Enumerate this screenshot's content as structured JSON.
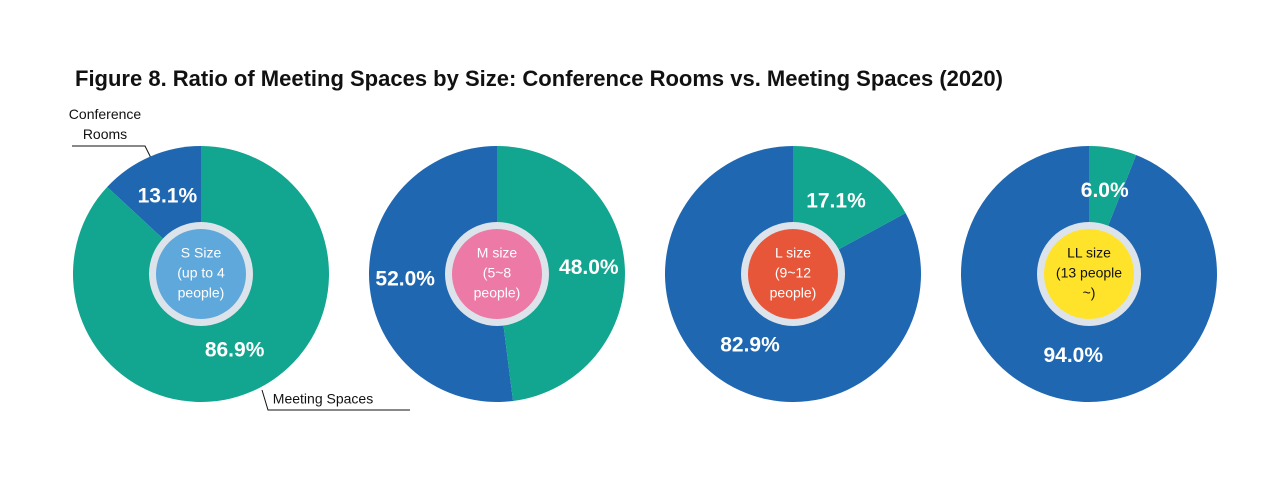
{
  "title": "Figure 8. Ratio of Meeting Spaces by Size: Conference Rooms vs. Meeting Spaces (2020)",
  "chart_data": [
    {
      "type": "pie",
      "categories": [
        "Conference Rooms",
        "Meeting Spaces"
      ],
      "values": [
        13.1,
        86.9
      ],
      "value_labels": [
        "13.1%",
        "86.9%"
      ],
      "colors": [
        "#1f67b1",
        "#12a58f"
      ],
      "center_label": [
        "S Size",
        "(up to 4",
        "people)"
      ],
      "center_color": "#5fa8dc",
      "center_text_color": "#ffffff"
    },
    {
      "type": "pie",
      "values": [
        52.0,
        48.0
      ],
      "value_labels": [
        "52.0%",
        "48.0%"
      ],
      "colors": [
        "#1f67b1",
        "#12a58f"
      ],
      "center_label": [
        "M size",
        "(5~8",
        "people)"
      ],
      "center_color": "#ec79a6",
      "center_text_color": "#ffffff"
    },
    {
      "type": "pie",
      "values": [
        82.9,
        17.1
      ],
      "value_labels": [
        "82.9%",
        "17.1%"
      ],
      "colors": [
        "#1f67b1",
        "#12a58f"
      ],
      "center_label": [
        "L size",
        "(9~12",
        "people)"
      ],
      "center_color": "#e8563a",
      "center_text_color": "#ffffff"
    },
    {
      "type": "pie",
      "values": [
        94.0,
        6.0
      ],
      "value_labels": [
        "94.0%",
        "6.0%"
      ],
      "colors": [
        "#1f67b1",
        "#12a58f"
      ],
      "center_label": [
        "LL size",
        "(13 people",
        "~)"
      ],
      "center_color": "#ffe32b",
      "center_text_color": "#111111"
    }
  ]
}
